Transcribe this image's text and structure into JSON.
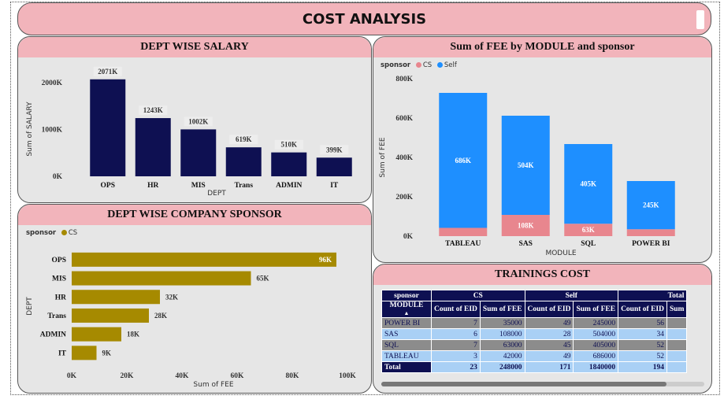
{
  "banner": {
    "title": "COST ANALYSIS"
  },
  "salary": {
    "title": "DEPT WISE SALARY",
    "chart_data": {
      "type": "bar",
      "xlabel": "DEPT",
      "ylabel": "Sum of SALARY",
      "categories": [
        "OPS",
        "HR",
        "MIS",
        "Trans",
        "ADMIN",
        "IT"
      ],
      "values": [
        2071,
        1243,
        1002,
        619,
        510,
        399
      ],
      "labels": [
        "2071K",
        "1243K",
        "1002K",
        "619K",
        "510K",
        "399K"
      ],
      "ylim": [
        0,
        2000
      ],
      "yticks": [
        0,
        1000,
        2000
      ],
      "ytick_labels": [
        "0K",
        "1000K",
        "2000K"
      ],
      "color": "#0e1052"
    }
  },
  "sponsor": {
    "title": "DEPT WISE COMPANY SPONSOR",
    "legend": {
      "title": "sponsor",
      "items": [
        {
          "label": "CS",
          "color": "#a68a00"
        }
      ]
    },
    "chart_data": {
      "type": "bar",
      "orientation": "horizontal",
      "xlabel": "Sum of FEE",
      "ylabel": "DEPT",
      "categories": [
        "OPS",
        "MIS",
        "HR",
        "Trans",
        "ADMIN",
        "IT"
      ],
      "values": [
        96,
        65,
        32,
        28,
        18,
        9
      ],
      "labels": [
        "96K",
        "65K",
        "32K",
        "28K",
        "18K",
        "9K"
      ],
      "xlim": [
        0,
        100
      ],
      "xticks": [
        0,
        20,
        40,
        60,
        80,
        100
      ],
      "xtick_labels": [
        "0K",
        "20K",
        "40K",
        "60K",
        "80K",
        "100K"
      ],
      "color": "#a68a00"
    }
  },
  "fee": {
    "title": "Sum of FEE by MODULE and sponsor",
    "legend": {
      "title": "sponsor",
      "items": [
        {
          "label": "CS",
          "color": "#e8868e"
        },
        {
          "label": "Self",
          "color": "#1e8fff"
        }
      ]
    },
    "chart_data": {
      "type": "bar",
      "stacked": true,
      "xlabel": "MODULE",
      "ylabel": "Sum of FEE",
      "categories": [
        "TABLEAU",
        "SAS",
        "SQL",
        "POWER BI"
      ],
      "series": [
        {
          "name": "CS",
          "values": [
            42,
            108,
            63,
            35
          ],
          "labels": [
            "",
            "108K",
            "63K",
            ""
          ],
          "color": "#e8868e"
        },
        {
          "name": "Self",
          "values": [
            686,
            504,
            405,
            245
          ],
          "labels": [
            "686K",
            "504K",
            "405K",
            "245K"
          ],
          "color": "#1e8fff"
        }
      ],
      "ylim": [
        0,
        800
      ],
      "yticks": [
        0,
        200,
        400,
        600,
        800
      ],
      "ytick_labels": [
        "0K",
        "200K",
        "400K",
        "600K",
        "800K"
      ]
    }
  },
  "trainings": {
    "title": "TRAININGS COST",
    "header1": [
      "sponsor",
      "CS",
      "Self",
      "Total"
    ],
    "header2": [
      "MODULE",
      "Count of EID",
      "Sum of FEE",
      "Count of EID",
      "Sum of FEE",
      "Count of EID",
      "Sum"
    ],
    "rows": [
      [
        "POWER BI",
        "7",
        "35000",
        "49",
        "245000",
        "56",
        ""
      ],
      [
        "SAS",
        "6",
        "108000",
        "28",
        "504000",
        "34",
        ""
      ],
      [
        "SQL",
        "7",
        "63000",
        "45",
        "405000",
        "52",
        ""
      ],
      [
        "TABLEAU",
        "3",
        "42000",
        "49",
        "686000",
        "52",
        ""
      ]
    ],
    "total": [
      "Total",
      "23",
      "248000",
      "171",
      "1840000",
      "194",
      ""
    ]
  }
}
